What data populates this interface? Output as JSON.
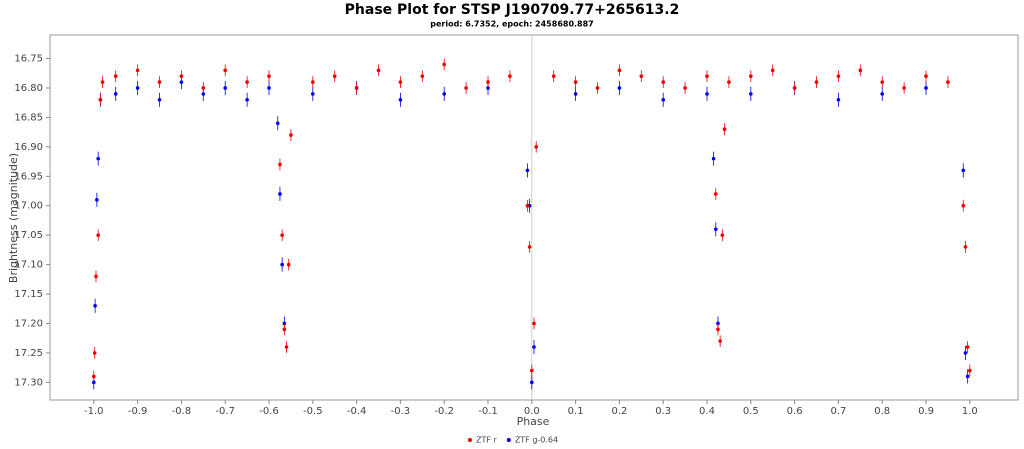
{
  "chart_data": {
    "type": "scatter",
    "title": "Phase Plot for STSP J190709.77+265613.2",
    "subtitle": "period: 6.7352, epoch: 2458680.887",
    "xlabel": "Phase",
    "ylabel": "Brightness (magnitude)",
    "xlim": [
      -1.1,
      1.11
    ],
    "ylim": [
      16.71,
      17.33
    ],
    "y_inverted": true,
    "xticks": [
      {
        "value": -1.0,
        "label": "-1.0"
      },
      -0.9,
      -0.8,
      -0.7,
      -0.6,
      -0.5,
      -0.4,
      -0.3,
      -0.2,
      -0.1,
      {
        "value": 0,
        "label": "0.0"
      },
      0.1,
      0.2,
      0.3,
      0.4,
      0.5,
      0.6,
      0.7,
      0.8,
      0.9,
      {
        "value": 1.0,
        "label": "1.0"
      }
    ],
    "yticks": [
      16.75,
      {
        "value": 16.8,
        "label": "16.80"
      },
      16.85,
      {
        "value": 16.9,
        "label": "16.90"
      },
      16.95,
      {
        "value": 17.0,
        "label": "17.00"
      },
      17.05,
      {
        "value": 17.1,
        "label": "17.10"
      },
      17.15,
      {
        "value": 17.2,
        "label": "17.20"
      },
      17.25,
      {
        "value": 17.3,
        "label": "17.30"
      }
    ],
    "legend": "bottom",
    "series": [
      {
        "name": "ZTF g-0.64",
        "color": "#0000ee",
        "error": 0.012,
        "x": [
          -1.0,
          -0.997,
          -0.993,
          -0.99,
          -0.985,
          -0.95,
          -0.9,
          -0.85,
          -0.8,
          -0.75,
          -0.7,
          -0.65,
          -0.6,
          -0.58,
          -0.575,
          -0.57,
          -0.565,
          -0.5,
          -0.4,
          -0.3,
          -0.2,
          -0.1,
          -0.01,
          -0.005,
          0.0,
          0.005,
          0.1,
          0.2,
          0.3,
          0.4,
          0.415,
          0.42,
          0.425,
          0.5,
          0.6,
          0.7,
          0.8,
          0.9,
          0.985,
          0.99,
          0.995
        ],
        "values": [
          17.3,
          17.17,
          16.99,
          16.92,
          16.82,
          16.81,
          16.8,
          16.82,
          16.79,
          16.81,
          16.8,
          16.82,
          16.8,
          16.86,
          16.98,
          17.1,
          17.2,
          16.81,
          16.8,
          16.82,
          16.81,
          16.8,
          16.94,
          17.0,
          17.3,
          17.24,
          16.81,
          16.8,
          16.82,
          16.81,
          16.92,
          17.04,
          17.2,
          16.81,
          16.8,
          16.82,
          16.81,
          16.8,
          16.94,
          17.25,
          17.29
        ]
      },
      {
        "name": "ZTF r",
        "color": "#ee0000",
        "error": 0.01,
        "x": [
          -1.0,
          -0.998,
          -0.995,
          -0.99,
          -0.985,
          -0.98,
          -0.95,
          -0.9,
          -0.85,
          -0.8,
          -0.75,
          -0.7,
          -0.65,
          -0.6,
          -0.575,
          -0.57,
          -0.565,
          -0.56,
          -0.555,
          -0.55,
          -0.5,
          -0.45,
          -0.4,
          -0.35,
          -0.3,
          -0.25,
          -0.2,
          -0.15,
          -0.1,
          -0.05,
          -0.01,
          -0.005,
          0.0,
          0.005,
          0.01,
          0.05,
          0.1,
          0.15,
          0.2,
          0.25,
          0.3,
          0.35,
          0.4,
          0.42,
          0.425,
          0.43,
          0.435,
          0.44,
          0.45,
          0.5,
          0.55,
          0.6,
          0.65,
          0.7,
          0.75,
          0.8,
          0.85,
          0.9,
          0.95,
          0.985,
          0.99,
          0.995,
          1.0
        ],
        "values": [
          17.29,
          17.25,
          17.12,
          17.05,
          16.82,
          16.79,
          16.78,
          16.77,
          16.79,
          16.78,
          16.8,
          16.77,
          16.79,
          16.78,
          16.93,
          17.05,
          17.21,
          17.24,
          17.1,
          16.88,
          16.79,
          16.78,
          16.8,
          16.77,
          16.79,
          16.78,
          16.76,
          16.8,
          16.79,
          16.78,
          17.0,
          17.07,
          17.28,
          17.2,
          16.9,
          16.78,
          16.79,
          16.8,
          16.77,
          16.78,
          16.79,
          16.8,
          16.78,
          16.98,
          17.21,
          17.23,
          17.05,
          16.87,
          16.79,
          16.78,
          16.77,
          16.8,
          16.79,
          16.78,
          16.77,
          16.79,
          16.8,
          16.78,
          16.79,
          17.0,
          17.07,
          17.24,
          17.28
        ]
      }
    ]
  }
}
